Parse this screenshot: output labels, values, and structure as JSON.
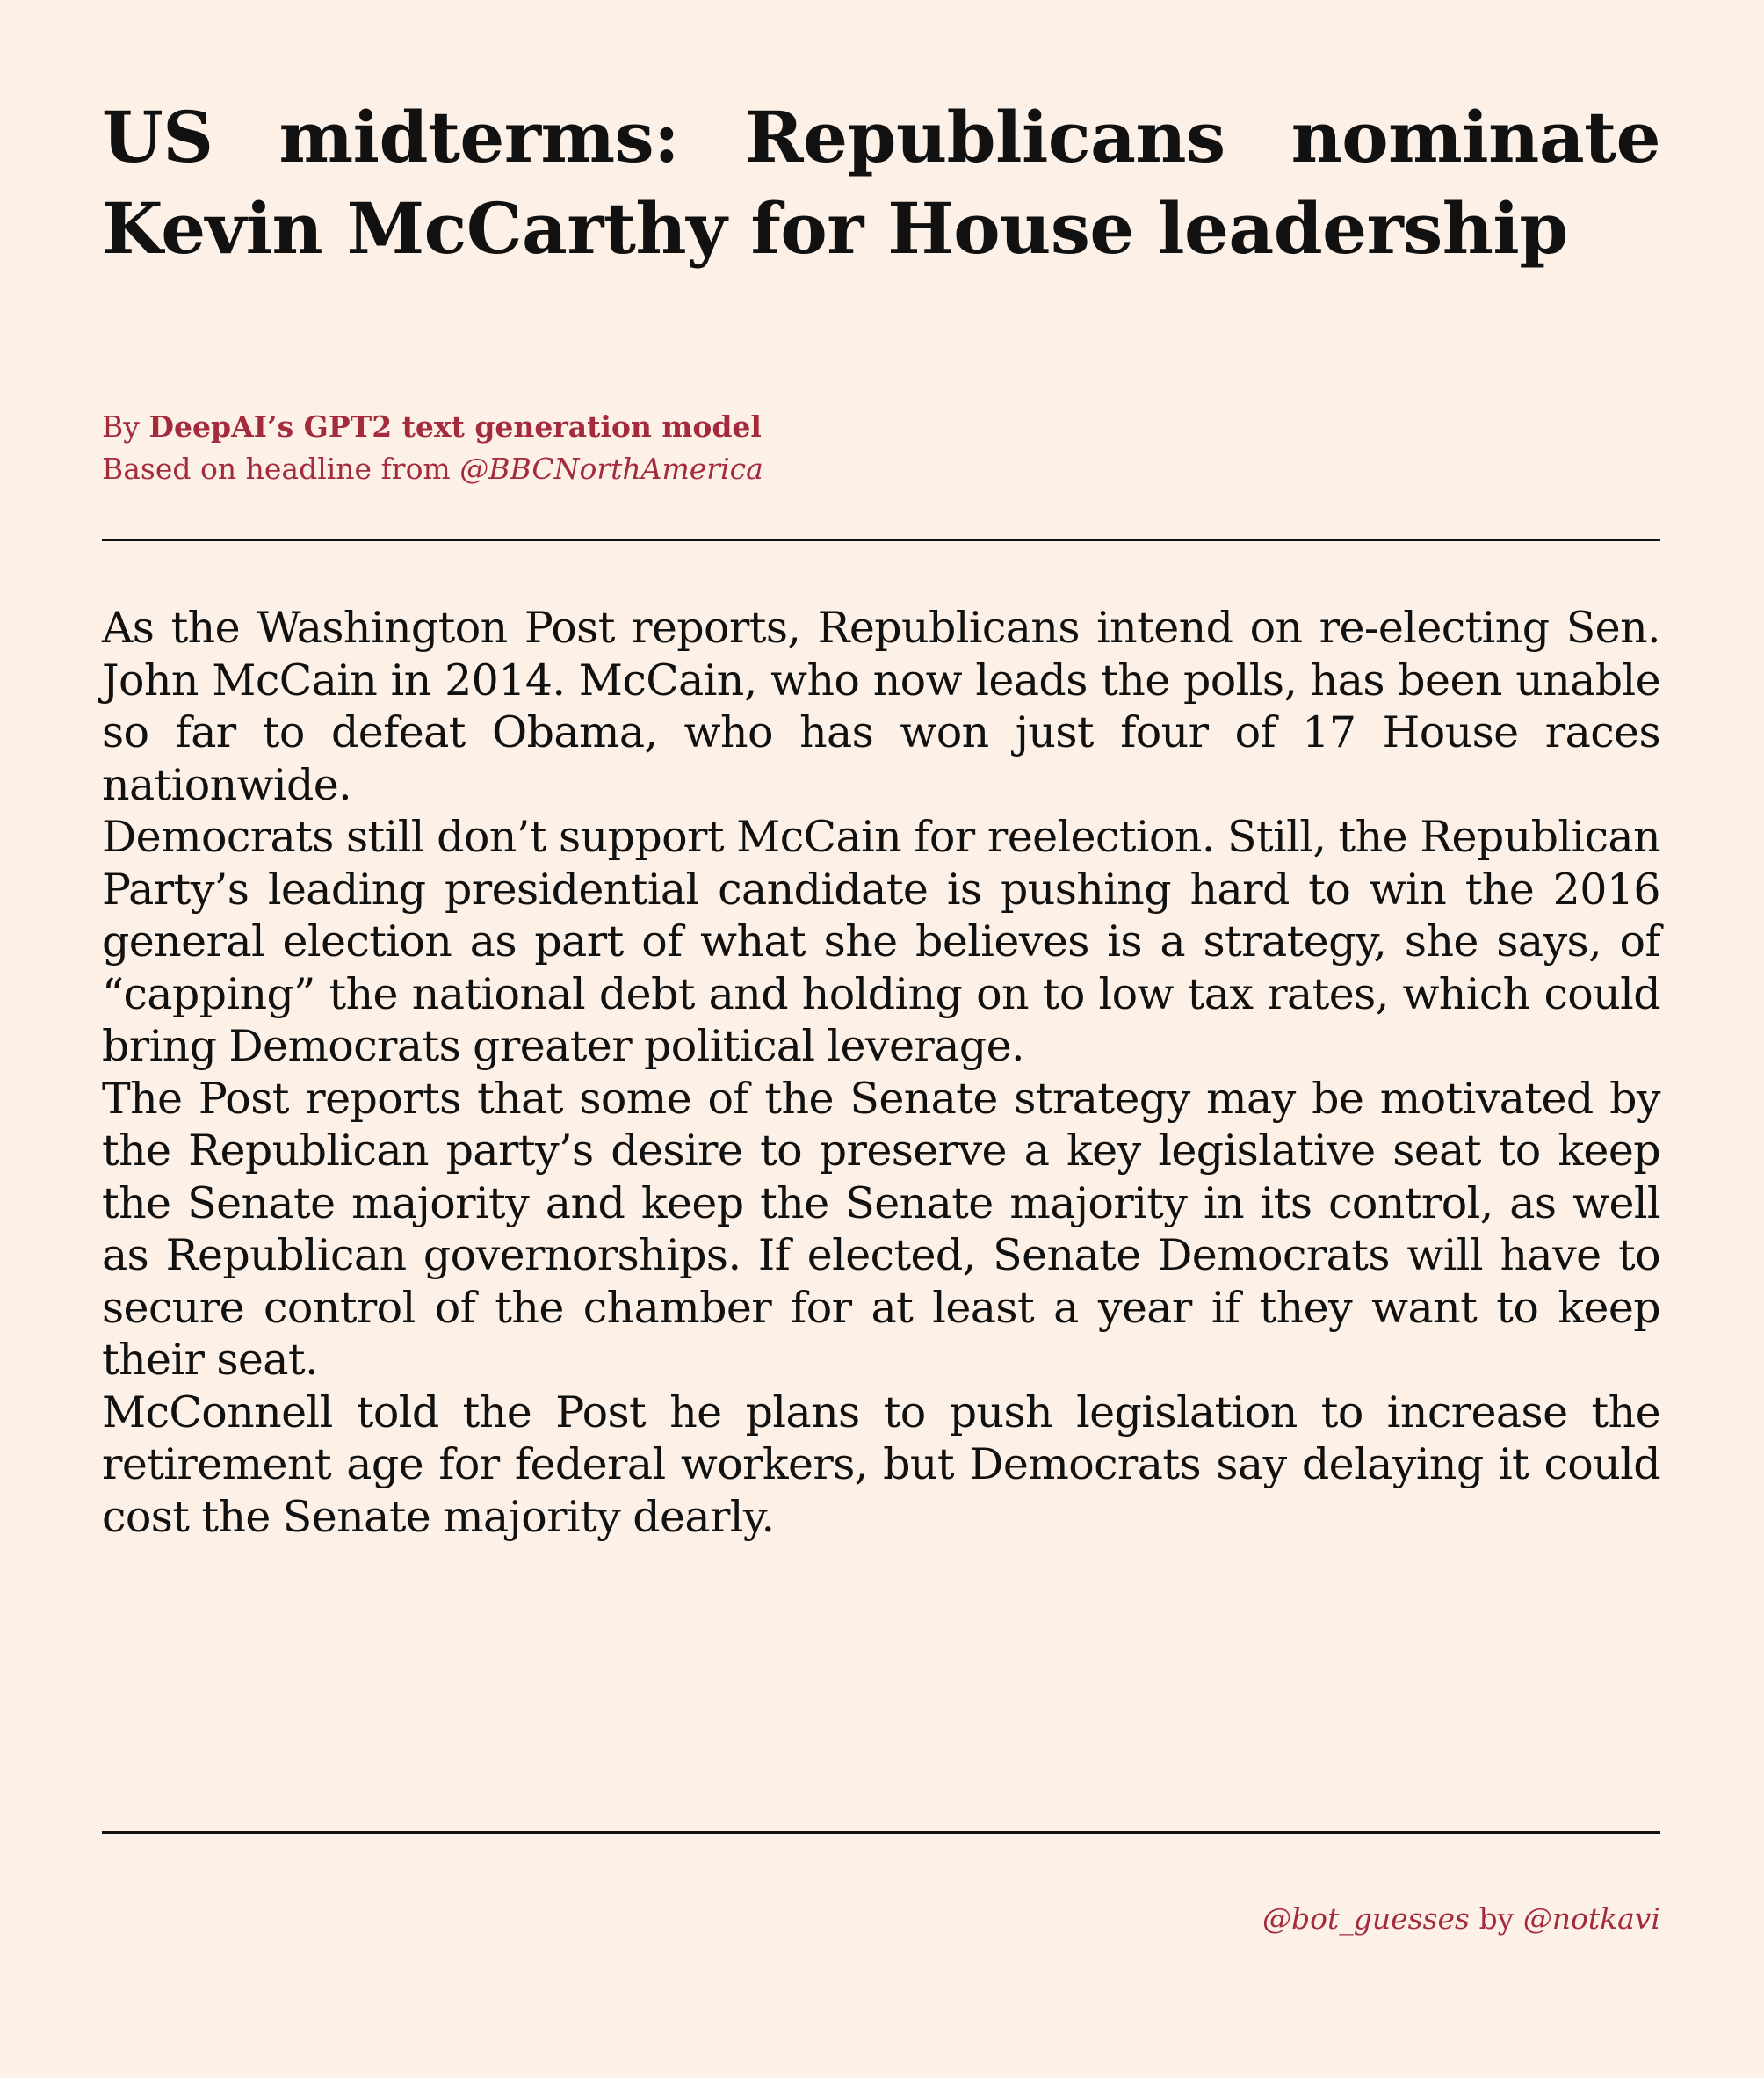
{
  "article": {
    "headline": "US midterms: Republicans nominate Kevin McCarthy for House leader­ship",
    "byline": {
      "by_prefix": "By ",
      "author": "DeepAI’s GPT2 text generation model",
      "based_on_prefix": "Based on headline from ",
      "source_handle": "@BBCNorthAmerica"
    },
    "paragraphs": [
      "As the Washington Post reports, Republicans intend on re-electing Sen. John McCain in 2014. McCain, who now leads the polls, has been unable so far to defeat Obama, who has won just four of 17 House races nationwide.",
      "Democrats still don’t support McCain for reelection. Still, the Repub­lican Party’s leading presidential candidate is pushing hard to win the 2016 general election as part of what she believes is a strategy, she says, of “capping” the national debt and holding on to low tax rates, which could bring Democrats greater political leverage.",
      "The Post reports that some of the Senate strategy may be motivated by the Republican party’s desire to preserve a key legislative seat to keep the Senate majority and keep the Senate majority in its control, as well as Republican governorships. If elected, Senate Democrats will have to secure control of the chamber for at least a year if they want to keep their seat.",
      "McConnell told the Post he plans to push legislation to increase the retirement age for federal workers, but Democrats say delaying it could cost the Senate majority dearly."
    ]
  },
  "footer": {
    "bot_handle": "@bot_guesses",
    "by_word": " by ",
    "author_handle": "@notkavi"
  },
  "colors": {
    "background": "#fdf1e7",
    "text": "#111111",
    "accent": "#a32b3c"
  }
}
